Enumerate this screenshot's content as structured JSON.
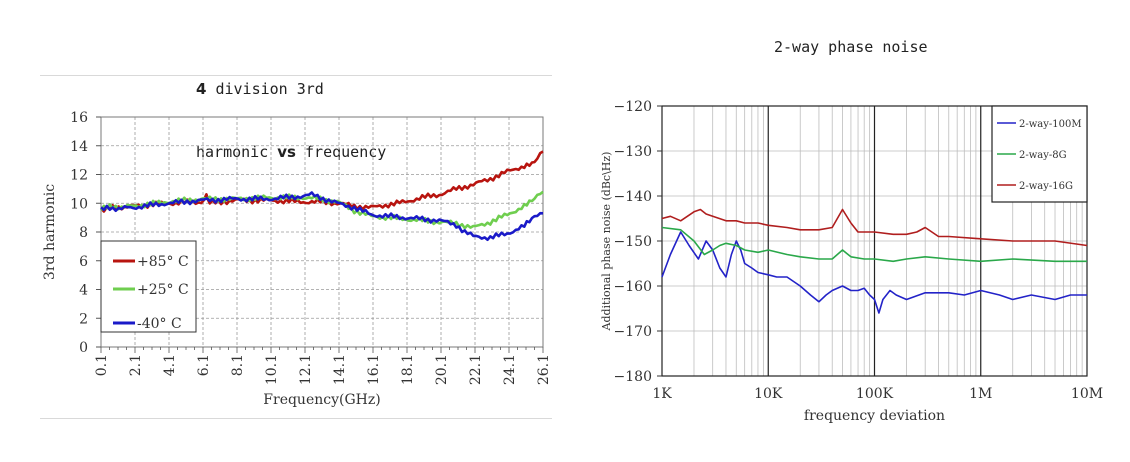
{
  "chart_data": [
    {
      "type": "line",
      "title_prefix": "4",
      "title_line1": "division 3rd",
      "title_line2_a": "harmonic ",
      "title_line2_b": "vs",
      "title_line2_c": "frequency",
      "xlabel": "Frequency(GHz)",
      "ylabel": "3rd harmonic",
      "xticks": [
        "0.1",
        "2.1",
        "4.1",
        "6.1",
        "8.1",
        "10.1",
        "12.1",
        "14.1",
        "16.1",
        "18.1",
        "20.1",
        "22.1",
        "24.1",
        "26.1"
      ],
      "xlim": [
        0.1,
        26.1
      ],
      "ylim": [
        0,
        16
      ],
      "yticks": [
        "0",
        "2",
        "4",
        "6",
        "8",
        "10",
        "12",
        "14",
        "16"
      ],
      "grid": true,
      "legend_position": "bottom-left",
      "series": [
        {
          "name": "+85° C",
          "color": "#b8140f",
          "x": [
            0.1,
            2,
            4,
            6,
            6.3,
            6.5,
            8,
            10,
            12,
            13,
            14,
            15,
            16,
            17,
            18,
            19,
            20,
            21,
            22,
            23,
            24,
            25,
            25.6,
            26.1
          ],
          "y": [
            9.6,
            9.8,
            10.0,
            10.1,
            10.6,
            10.0,
            10.2,
            10.2,
            10.1,
            10.1,
            10.0,
            9.8,
            9.7,
            9.9,
            10.1,
            10.4,
            10.6,
            11.0,
            11.3,
            11.7,
            12.2,
            12.6,
            12.9,
            13.6
          ]
        },
        {
          "name": "+25° C",
          "color": "#6fce4f",
          "x": [
            0.1,
            2,
            4,
            6,
            8,
            10,
            12,
            13,
            14,
            15,
            16,
            17,
            18,
            19,
            20,
            21,
            22,
            23,
            24,
            25,
            25.6,
            26.1
          ],
          "y": [
            9.7,
            9.8,
            10.1,
            10.3,
            10.3,
            10.4,
            10.4,
            10.3,
            10.1,
            9.5,
            9.1,
            9.0,
            8.9,
            8.8,
            8.7,
            8.6,
            8.3,
            8.7,
            9.2,
            9.8,
            10.3,
            10.8
          ]
        },
        {
          "name": "-40° C",
          "color": "#1a1ac8",
          "x": [
            0.1,
            2,
            4,
            6,
            8,
            10,
            12,
            12.5,
            13,
            14,
            15,
            16,
            17,
            18,
            19,
            20,
            21,
            21.5,
            22,
            23,
            24,
            25,
            25.6,
            26.1
          ],
          "y": [
            9.6,
            9.7,
            10.0,
            10.2,
            10.3,
            10.3,
            10.5,
            10.6,
            10.4,
            10.0,
            9.7,
            9.2,
            9.1,
            9.0,
            8.9,
            8.8,
            8.5,
            8.0,
            7.7,
            7.6,
            7.9,
            8.4,
            9.0,
            9.3
          ]
        }
      ]
    },
    {
      "type": "line",
      "title": "2-way phase noise",
      "xlabel": "frequency deviation",
      "ylabel": "Additional phase noise (dBc\\Hz)",
      "x_scale": "log",
      "xlim": [
        1000,
        10000000
      ],
      "xticks": [
        "1K",
        "10K",
        "100K",
        "1M",
        "10M"
      ],
      "ylim": [
        -180,
        -120
      ],
      "yticks": [
        "−120",
        "−130",
        "−140",
        "−150",
        "−160",
        "−170",
        "−180"
      ],
      "grid": true,
      "legend_position": "top-right",
      "series": [
        {
          "name": "2-way-100M",
          "color": "#2323c8",
          "x": [
            1000,
            1200,
            1500,
            1800,
            2200,
            2600,
            3000,
            3500,
            4000,
            4500,
            5000,
            5500,
            6000,
            7000,
            8000,
            10000,
            12000,
            15000,
            20000,
            25000,
            30000,
            35000,
            40000,
            50000,
            60000,
            70000,
            80000,
            90000,
            100000,
            110000,
            120000,
            140000,
            160000,
            200000,
            300000,
            500000,
            700000,
            1000000,
            1500000,
            2000000,
            3000000,
            5000000,
            7000000,
            10000000
          ],
          "y": [
            -158,
            -153,
            -148,
            -151,
            -154,
            -150,
            -152,
            -156,
            -158,
            -153,
            -150,
            -152,
            -155,
            -156,
            -157,
            -157.5,
            -158,
            -158,
            -160,
            -162,
            -163.5,
            -162,
            -161,
            -160,
            -161,
            -161,
            -160.5,
            -162,
            -163,
            -166,
            -163,
            -161,
            -162,
            -163,
            -161.5,
            -161.5,
            -162,
            -161,
            -162,
            -163,
            -162,
            -163,
            -162,
            -162
          ]
        },
        {
          "name": "2-way-8G",
          "color": "#2aa84a",
          "x": [
            1000,
            1500,
            2000,
            2500,
            3000,
            3500,
            4000,
            5000,
            6000,
            8000,
            10000,
            15000,
            20000,
            30000,
            40000,
            50000,
            60000,
            80000,
            100000,
            150000,
            200000,
            300000,
            500000,
            1000000,
            2000000,
            5000000,
            10000000
          ],
          "y": [
            -147,
            -147.5,
            -150,
            -153,
            -152,
            -151,
            -150.5,
            -151,
            -152,
            -152.5,
            -152,
            -153,
            -153.5,
            -154,
            -154,
            -152,
            -153.5,
            -154,
            -154,
            -154.5,
            -154,
            -153.5,
            -154,
            -154.5,
            -154,
            -154.5,
            -154.5
          ]
        },
        {
          "name": "2-way-16G",
          "color": "#b01e1e",
          "x": [
            1000,
            1200,
            1500,
            2000,
            2300,
            2600,
            3000,
            4000,
            5000,
            6000,
            8000,
            10000,
            15000,
            20000,
            30000,
            40000,
            50000,
            60000,
            70000,
            100000,
            150000,
            200000,
            250000,
            300000,
            400000,
            500000,
            1000000,
            2000000,
            5000000,
            10000000
          ],
          "y": [
            -145,
            -144.5,
            -145.5,
            -143.5,
            -143,
            -144,
            -144.5,
            -145.5,
            -145.5,
            -146,
            -146,
            -146.5,
            -147,
            -147.5,
            -147.5,
            -147,
            -143,
            -146,
            -148,
            -148,
            -148.5,
            -148.5,
            -148,
            -147,
            -149,
            -149,
            -149.5,
            -150,
            -150,
            -151
          ]
        }
      ]
    }
  ]
}
